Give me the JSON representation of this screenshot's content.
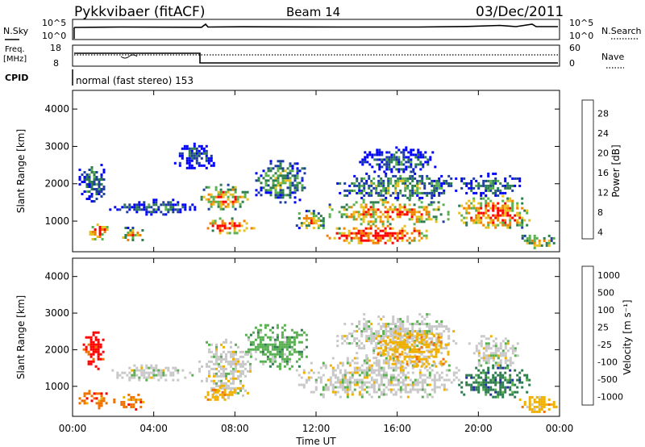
{
  "header": {
    "station": "Pykkvibaer (fitACF)",
    "beam": "Beam 14",
    "date": "03/Dec/2011"
  },
  "summary_panels": {
    "nsky_label": "N.Sky",
    "nsky_ticks": [
      "10^5",
      "10^0"
    ],
    "nsearch_label": "N.Search",
    "nsearch_ticks": [
      "10^5",
      "10^0"
    ],
    "freq_label": "Freq.",
    "freq_unit": "[MHz]",
    "freq_ticks": [
      "18",
      "8"
    ],
    "nave_label": "Nave",
    "nave_ticks": [
      "60",
      "0"
    ],
    "cpid_label": "CPID",
    "cpid_text": "normal (fast stereo) 153"
  },
  "chart_data": [
    {
      "type": "heatmap",
      "panel": "power",
      "ylabel": "Slant Range [km]",
      "yticks": [
        "4000",
        "3000",
        "2000",
        "1000"
      ],
      "ylim": [
        180,
        4500
      ],
      "xlim": [
        0,
        24
      ],
      "colorbar_label": "Power [dB]",
      "colorbar_ticks": [
        "28",
        "24",
        "20",
        "16",
        "12",
        "8",
        "4"
      ],
      "colors": [
        "#0000ff",
        "#1f3fa0",
        "#2e7d4f",
        "#58b050",
        "#e8c020",
        "#f08000",
        "#ff0000"
      ],
      "regions": [
        {
          "t": [
            0.3,
            1.6
          ],
          "r": [
            1500,
            2600
          ],
          "level": 0.35
        },
        {
          "t": [
            0.7,
            1.8
          ],
          "r": [
            500,
            1000
          ],
          "level": 0.8
        },
        {
          "t": [
            1.8,
            6.0
          ],
          "r": [
            1200,
            1600
          ],
          "level": 0.3
        },
        {
          "t": [
            2.2,
            3.5
          ],
          "r": [
            450,
            850
          ],
          "level": 0.7
        },
        {
          "t": [
            5.0,
            7.0
          ],
          "r": [
            2400,
            3100
          ],
          "level": 0.25
        },
        {
          "t": [
            6.3,
            8.6
          ],
          "r": [
            1300,
            2000
          ],
          "level": 0.75
        },
        {
          "t": [
            6.5,
            9.0
          ],
          "r": [
            700,
            1100
          ],
          "level": 0.9
        },
        {
          "t": [
            9.0,
            11.5
          ],
          "r": [
            1500,
            2700
          ],
          "level": 0.45
        },
        {
          "t": [
            11.0,
            12.5
          ],
          "r": [
            800,
            1300
          ],
          "level": 0.7
        },
        {
          "t": [
            12.5,
            17.5
          ],
          "r": [
            400,
            900
          ],
          "level": 0.95
        },
        {
          "t": [
            12.5,
            18.5
          ],
          "r": [
            900,
            1600
          ],
          "level": 0.8
        },
        {
          "t": [
            13.0,
            19.0
          ],
          "r": [
            1600,
            2300
          ],
          "level": 0.5
        },
        {
          "t": [
            14.0,
            18.0
          ],
          "r": [
            2300,
            3000
          ],
          "level": 0.3
        },
        {
          "t": [
            19.0,
            22.5
          ],
          "r": [
            800,
            1700
          ],
          "level": 0.85
        },
        {
          "t": [
            19.0,
            22.0
          ],
          "r": [
            1700,
            2300
          ],
          "level": 0.35
        },
        {
          "t": [
            22.0,
            23.8
          ],
          "r": [
            300,
            700
          ],
          "level": 0.6
        }
      ]
    },
    {
      "type": "heatmap",
      "panel": "velocity",
      "ylabel": "Slant Range [km]",
      "yticks": [
        "4000",
        "3000",
        "2000",
        "1000"
      ],
      "ylim": [
        180,
        4500
      ],
      "xlim": [
        0,
        24
      ],
      "xticks": [
        "00:00",
        "04:00",
        "08:00",
        "12:00",
        "16:00",
        "20:00",
        "00:00"
      ],
      "xlabel": "Time UT",
      "colorbar_label": "Velocity [m s⁻¹]",
      "colorbar_ticks": [
        "1000",
        "500",
        "100",
        "25",
        "-25",
        "-100",
        "-500",
        "-1000"
      ],
      "colors": [
        "#2030a0",
        "#2e7d4f",
        "#58b050",
        "#c8c8c8",
        "#f0b000",
        "#f07000",
        "#ff0000"
      ],
      "regions": [
        {
          "t": [
            0.3,
            1.8
          ],
          "r": [
            400,
            900
          ],
          "bin": 5
        },
        {
          "t": [
            0.5,
            1.5
          ],
          "r": [
            1500,
            2500
          ],
          "bin": 6
        },
        {
          "t": [
            1.8,
            6.0
          ],
          "r": [
            1200,
            1600
          ],
          "bin": 3
        },
        {
          "t": [
            2.0,
            3.5
          ],
          "r": [
            400,
            800
          ],
          "bin": 5
        },
        {
          "t": [
            6.2,
            8.8
          ],
          "r": [
            700,
            2300
          ],
          "bin": 3
        },
        {
          "t": [
            6.5,
            8.0
          ],
          "r": [
            600,
            1000
          ],
          "bin": 4
        },
        {
          "t": [
            8.5,
            11.5
          ],
          "r": [
            1500,
            2700
          ],
          "bin": 2
        },
        {
          "t": [
            11.0,
            19.0
          ],
          "r": [
            700,
            1800
          ],
          "bin": 3
        },
        {
          "t": [
            13.0,
            19.0
          ],
          "r": [
            1800,
            3000
          ],
          "bin": 3
        },
        {
          "t": [
            15.0,
            18.5
          ],
          "r": [
            1500,
            2500
          ],
          "bin": 4
        },
        {
          "t": [
            19.0,
            22.5
          ],
          "r": [
            700,
            1600
          ],
          "bin": 1
        },
        {
          "t": [
            19.5,
            22.0
          ],
          "r": [
            1600,
            2400
          ],
          "bin": 3
        },
        {
          "t": [
            22.0,
            23.8
          ],
          "r": [
            300,
            800
          ],
          "bin": 4
        }
      ]
    }
  ]
}
